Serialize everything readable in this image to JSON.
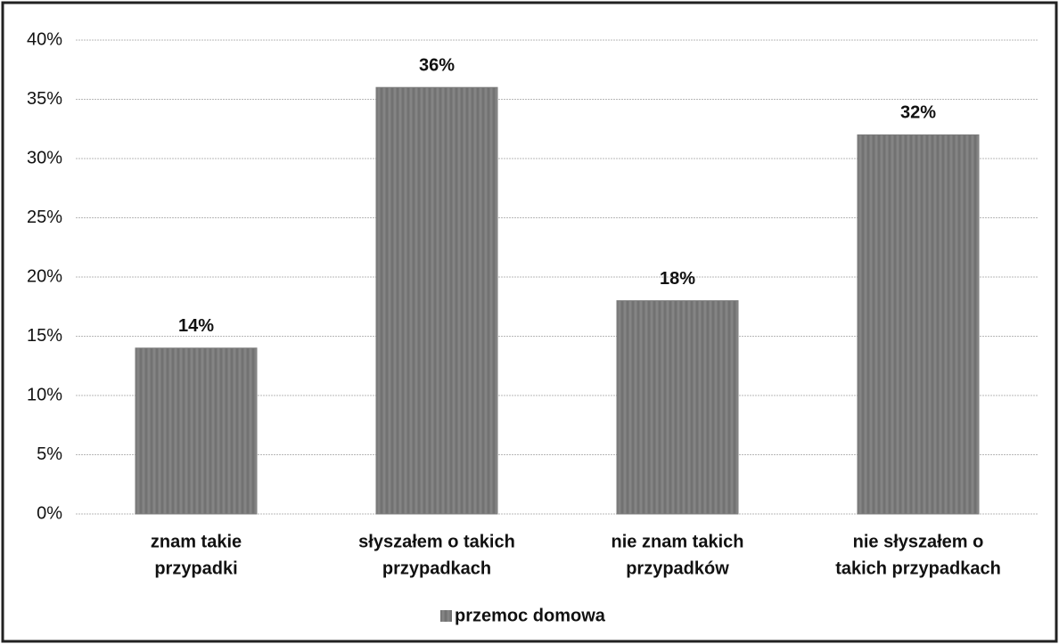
{
  "chart_data": {
    "type": "bar",
    "categories": [
      [
        "znam takie",
        "przypadki"
      ],
      [
        "słyszałem o takich",
        "przypadkach"
      ],
      [
        "nie znam takich",
        "przypadków"
      ],
      [
        "nie słyszałem o",
        "takich przypadkach"
      ]
    ],
    "series": [
      {
        "name": "przemoc domowa",
        "color": "#7b7b7b",
        "values": [
          14,
          36,
          18,
          32
        ],
        "value_labels": [
          "14%",
          "36%",
          "18%",
          "32%"
        ]
      }
    ],
    "ylim": [
      0,
      40
    ],
    "yticks": [
      {
        "value": 0,
        "label": "0%"
      },
      {
        "value": 5,
        "label": "5%"
      },
      {
        "value": 10,
        "label": "10%"
      },
      {
        "value": 15,
        "label": "15%"
      },
      {
        "value": 20,
        "label": "20%"
      },
      {
        "value": 25,
        "label": "25%"
      },
      {
        "value": 30,
        "label": "30%"
      },
      {
        "value": 35,
        "label": "35%"
      },
      {
        "value": 40,
        "label": "40%"
      }
    ],
    "grid": true,
    "legend": "bottom"
  }
}
